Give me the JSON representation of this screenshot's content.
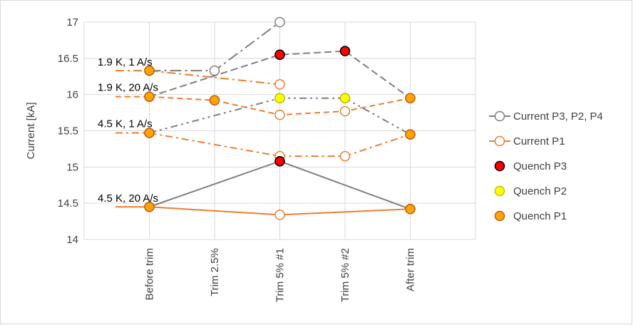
{
  "chart_data": {
    "type": "line",
    "ylabel": "Current [kA]",
    "xlabel": "",
    "ylim": [
      14,
      17
    ],
    "yticks": [
      14,
      14.5,
      15,
      15.5,
      16,
      16.5,
      17
    ],
    "grid": true,
    "legend_position": "right",
    "categories": [
      "Before trim",
      "Trim 2.5%",
      "Trim 5% #1",
      "Trim 5% #2",
      "After trim"
    ],
    "conditions": [
      {
        "label": "1.9 K, 1 A/s",
        "label_at": 16.45,
        "start_line": 16.33,
        "p3": {
          "x": [
            0,
            1,
            2
          ],
          "y": [
            16.33,
            16.33,
            17.0
          ]
        },
        "p1": {
          "x": [
            0,
            2
          ],
          "y": [
            16.33,
            16.14
          ]
        },
        "quench_p1": [
          {
            "x": 0,
            "y": 16.33
          }
        ]
      },
      {
        "label": "1.9 K, 20 A/s",
        "label_at": 16.1,
        "start_line": 15.97,
        "p3": {
          "x": [
            0,
            2,
            3,
            4
          ],
          "y": [
            15.97,
            16.55,
            16.6,
            15.95
          ]
        },
        "p1": {
          "x": [
            0,
            1,
            2,
            3,
            4
          ],
          "y": [
            15.97,
            15.92,
            15.72,
            15.77,
            15.95
          ]
        },
        "quench_p1": [
          {
            "x": 0,
            "y": 15.97
          },
          {
            "x": 1,
            "y": 15.92
          },
          {
            "x": 4,
            "y": 15.95
          }
        ],
        "quench_p3": [
          {
            "x": 2,
            "y": 16.55
          },
          {
            "x": 3,
            "y": 16.6
          }
        ]
      },
      {
        "label": "4.5 K, 1 A/s",
        "label_at": 15.6,
        "start_line": 15.47,
        "p3": {
          "x": [
            0,
            2,
            3,
            4
          ],
          "y": [
            15.47,
            15.95,
            15.95,
            15.45
          ]
        },
        "p1": {
          "x": [
            0,
            2,
            3,
            4
          ],
          "y": [
            15.47,
            15.15,
            15.15,
            15.45
          ]
        },
        "quench_p1": [
          {
            "x": 0,
            "y": 15.47
          },
          {
            "x": 4,
            "y": 15.45
          }
        ],
        "quench_p2": [
          {
            "x": 2,
            "y": 15.95
          },
          {
            "x": 3,
            "y": 15.95
          }
        ]
      },
      {
        "label": "4.5 K, 20 A/s",
        "label_at": 14.57,
        "start_line": 14.45,
        "p3": {
          "x": [
            0,
            2,
            4
          ],
          "y": [
            14.45,
            15.08,
            14.42
          ]
        },
        "p1": {
          "x": [
            0,
            2,
            4
          ],
          "y": [
            14.45,
            14.34,
            14.42
          ]
        },
        "quench_p1": [
          {
            "x": 0,
            "y": 14.45
          },
          {
            "x": 4,
            "y": 14.42
          }
        ],
        "quench_p3": [
          {
            "x": 2,
            "y": 15.08
          }
        ]
      }
    ],
    "legend": [
      {
        "label": "Current P3, P2, P4",
        "kind": "line-open",
        "color": "#7f7f7f"
      },
      {
        "label": "Current P1",
        "kind": "line-open",
        "color": "#ed7d31"
      },
      {
        "label": "Quench P3",
        "kind": "marker",
        "fill": "#ff0000",
        "stroke": "#000000"
      },
      {
        "label": "Quench P2",
        "kind": "marker",
        "fill": "#ffff00",
        "stroke": "#bfbf00"
      },
      {
        "label": "Quench P1",
        "kind": "marker",
        "fill": "#ffa500",
        "stroke": "#c55a11"
      }
    ],
    "colors": {
      "gray_line": "#7f7f7f",
      "orange_line": "#ed7d31",
      "grid": "#d9d9d9",
      "axis_text": "#404040"
    }
  }
}
